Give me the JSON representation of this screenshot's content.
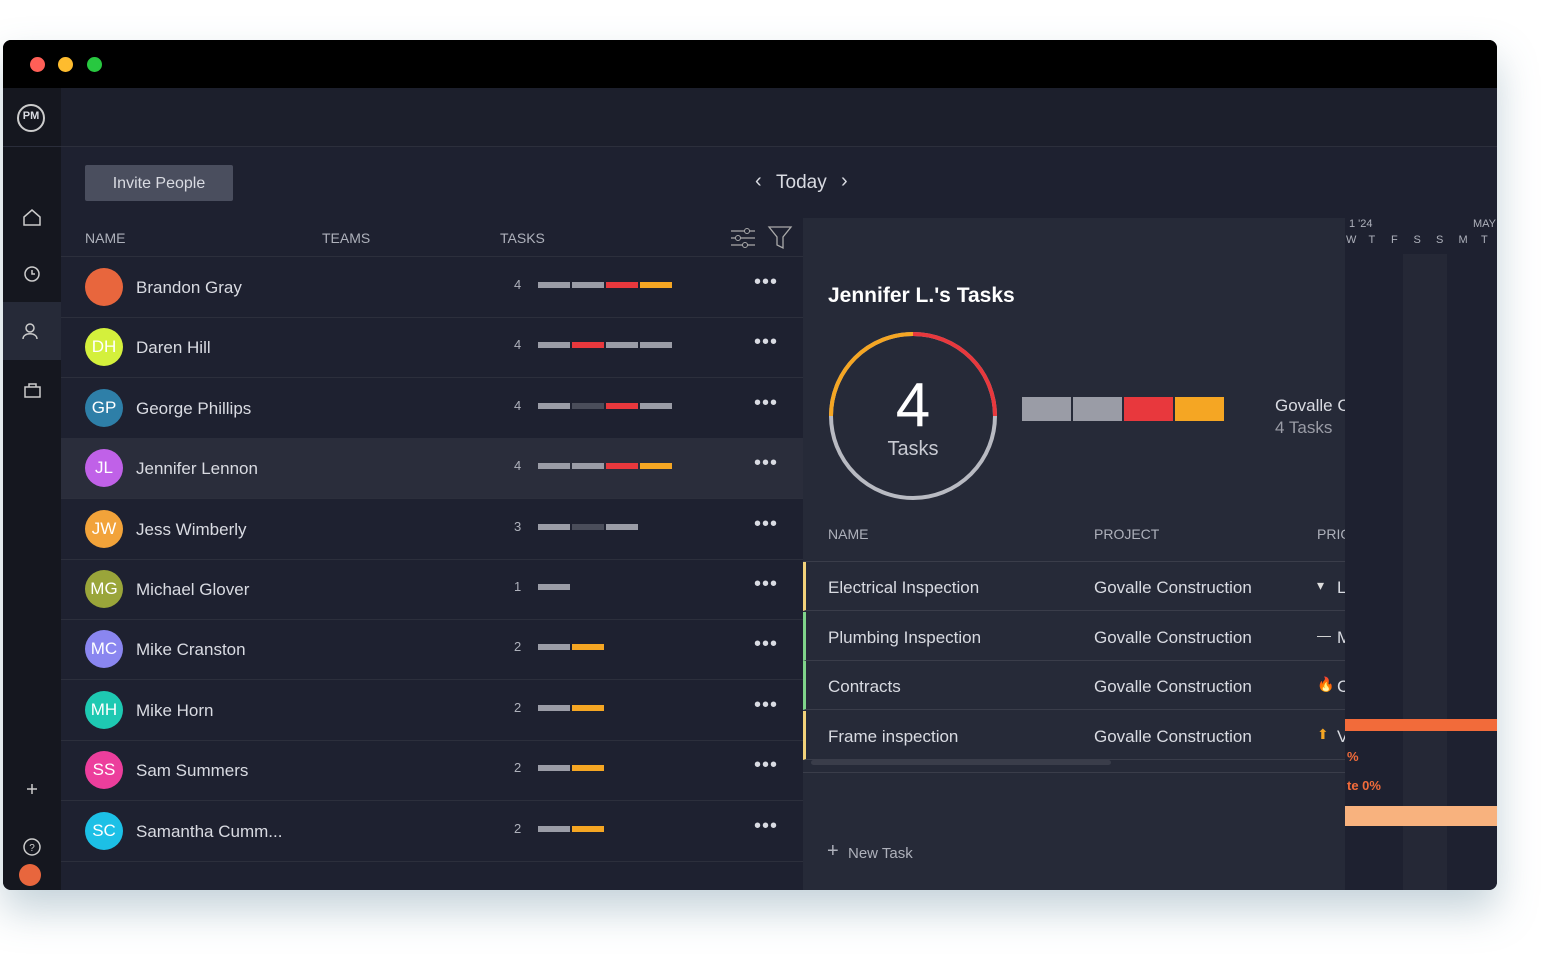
{
  "app": {
    "logo": "PM"
  },
  "toolbar": {
    "invite_button": "Invite People",
    "date_label": "Today"
  },
  "team_table": {
    "headers": [
      "NAME",
      "TEAMS",
      "TASKS"
    ],
    "rows": [
      {
        "name": "Brandon Gray",
        "avatar_color": "#e8663d",
        "tasks": 4,
        "task_bars": [
          "#9a9ca6",
          "#9a9ca6",
          "#e8383d",
          "#f5a623"
        ]
      },
      {
        "initials": "DH",
        "name": "Daren Hill",
        "avatar_color": "#d4f03c",
        "tasks": 4,
        "task_bars": [
          "#9a9ca6",
          "#e8383d",
          "#9a9ca6",
          "#9a9ca6"
        ]
      },
      {
        "initials": "GP",
        "name": "George Phillips",
        "avatar_color": "#2e7fa8",
        "tasks": 4,
        "task_bars": [
          "#9a9ca6",
          "#4a4d5a",
          "#e8383d",
          "#9a9ca6"
        ]
      },
      {
        "initials": "JL",
        "name": "Jennifer Lennon",
        "avatar_color": "#c061e8",
        "tasks": 4,
        "task_bars": [
          "#9a9ca6",
          "#9a9ca6",
          "#e8383d",
          "#f5a623"
        ]
      },
      {
        "initials": "JW",
        "name": "Jess Wimberly",
        "avatar_color": "#f2a33a",
        "tasks": 3,
        "task_bars": [
          "#9a9ca6",
          "#4a4d5a",
          "#9a9ca6"
        ]
      },
      {
        "initials": "MG",
        "name": "Michael Glover",
        "avatar_color": "#9aa53a",
        "tasks": 1,
        "task_bars": [
          "#9a9ca6"
        ]
      },
      {
        "initials": "MC",
        "name": "Mike Cranston",
        "avatar_color": "#8a86f0",
        "tasks": 2,
        "task_bars": [
          "#9a9ca6",
          "#f5a623"
        ]
      },
      {
        "initials": "MH",
        "name": "Mike Horn",
        "avatar_color": "#1ec9b2",
        "tasks": 2,
        "task_bars": [
          "#9a9ca6",
          "#f5a623"
        ]
      },
      {
        "initials": "SS",
        "name": "Sam Summers",
        "avatar_color": "#ec3e9c",
        "tasks": 2,
        "task_bars": [
          "#9a9ca6",
          "#f5a623"
        ]
      },
      {
        "initials": "SC",
        "name": "Samantha Cumm...",
        "avatar_color": "#1cc0e6",
        "tasks": 2,
        "task_bars": [
          "#9a9ca6",
          "#f5a623"
        ]
      }
    ]
  },
  "detail": {
    "title": "Jennifer L.'s Tasks",
    "task_count": 4,
    "task_count_label": "Tasks",
    "summary_bars": [
      "#9a9ca6",
      "#9a9ca6",
      "#e8383d",
      "#f5a623"
    ],
    "project_name": "Govalle Construction",
    "project_tasks": "4 Tasks",
    "headers": [
      "NAME",
      "PROJECT",
      "PRIORITY"
    ],
    "rows": [
      {
        "name": "Electrical Inspection",
        "project": "Govalle Construction",
        "priority": "Low",
        "border": "#f2d27a"
      },
      {
        "name": "Plumbing Inspection",
        "project": "Govalle Construction",
        "priority": "Medium",
        "border": "#7fd48a"
      },
      {
        "name": "Contracts",
        "project": "Govalle Construction",
        "priority": "Critical",
        "border": "#7fd48a"
      },
      {
        "name": "Frame inspection",
        "project": "Govalle Construction",
        "priority": "Very High",
        "border": "#f2d27a"
      }
    ],
    "new_task": "New Task"
  },
  "gantt": {
    "month_left": "1 '24",
    "month_right": "MAY",
    "days": [
      "W",
      "T",
      "F",
      "S",
      "S",
      "M",
      "T"
    ],
    "label_1": "%",
    "label_2": "te 0%"
  }
}
